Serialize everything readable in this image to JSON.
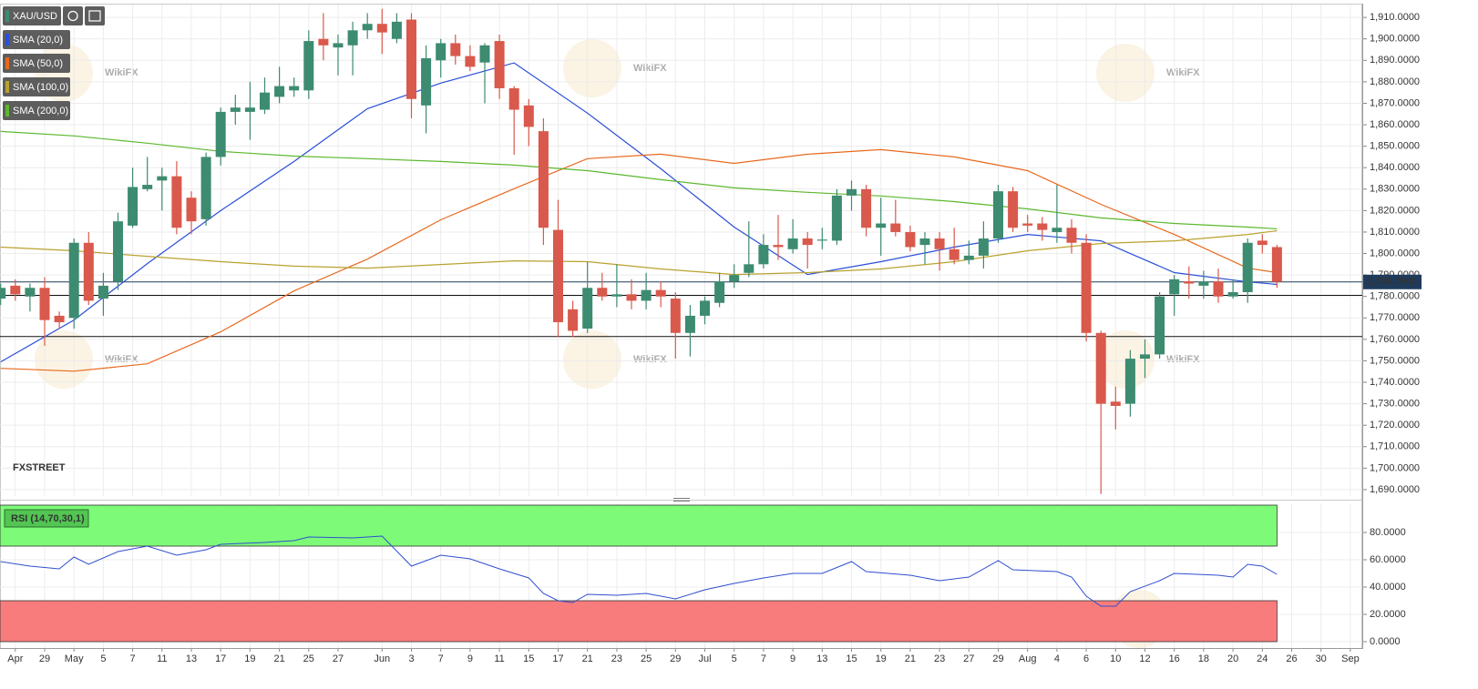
{
  "watermark": "WikiFX",
  "logo": {
    "fx": "FX",
    "street": "STREET"
  },
  "chart_data": [
    {
      "type": "candlestick",
      "symbol": "XAU/USD",
      "up_color": "#3d8b70",
      "down_color": "#d9594c",
      "grid": true,
      "categories": [
        null,
        "Apr",
        null,
        "29",
        null,
        "May",
        null,
        "5",
        null,
        "7",
        null,
        "11",
        null,
        "13",
        null,
        "17",
        null,
        "19",
        null,
        "21",
        null,
        "25",
        null,
        "27",
        null,
        null,
        "Jun",
        null,
        "3",
        null,
        "7",
        null,
        "9",
        null,
        "11",
        null,
        "15",
        null,
        "17",
        null,
        "21",
        null,
        "23",
        null,
        "25",
        null,
        "29",
        null,
        "Jul",
        null,
        "5",
        null,
        "7",
        null,
        "9",
        null,
        "13",
        null,
        "15",
        null,
        "19",
        null,
        "21",
        null,
        "23",
        null,
        "27",
        null,
        "29",
        null,
        "Aug",
        null,
        "4",
        null,
        "6",
        null,
        "10",
        null,
        "12",
        null,
        "16",
        null,
        "18",
        null,
        "20",
        null,
        "24",
        null,
        "26",
        null,
        "30",
        null,
        "Sep"
      ],
      "open": [
        1779,
        1785,
        1780,
        1784,
        1771,
        1770,
        1805,
        1779,
        1787,
        1813,
        1830,
        1834,
        1836,
        1826,
        1816,
        1845,
        1866,
        1866,
        1867,
        1873,
        1876,
        1876,
        1900,
        1896,
        1897,
        1904,
        1907,
        1900,
        1909,
        1869,
        1890,
        1898,
        1892,
        1889,
        1899,
        1877,
        1869,
        1857,
        1811,
        1774,
        1765,
        1784,
        1780,
        1781,
        1778,
        1783,
        1779,
        1763,
        1771,
        1777,
        1787,
        1791,
        1795,
        1804,
        1802,
        1807,
        1806,
        1806,
        1827,
        1830,
        1812,
        1814,
        1810,
        1804,
        1807,
        1802,
        1797,
        1799,
        1807,
        1829,
        1814,
        1814,
        1810,
        1812,
        1805,
        1763,
        1731,
        1730,
        1751,
        1753,
        1781,
        1787,
        1785,
        1787,
        1780,
        1782,
        1806,
        1803,
        null,
        null,
        null,
        null,
        null
      ],
      "high": [
        1786,
        1788,
        1786,
        1789,
        1773,
        1807,
        1810,
        1791,
        1819,
        1840,
        1845,
        1840,
        1843,
        1829,
        1847,
        1868,
        1874,
        1880,
        1882,
        1887,
        1882,
        1904,
        1912,
        1902,
        1908,
        1912,
        1914,
        1912,
        1912,
        1897,
        1900,
        1902,
        1897,
        1898,
        1902,
        1878,
        1872,
        1863,
        1825,
        1778,
        1796,
        1791,
        1795,
        1788,
        1791,
        1787,
        1782,
        1776,
        1780,
        1791,
        1795,
        1815,
        1809,
        1818,
        1816,
        1810,
        1812,
        1830,
        1834,
        1832,
        1826,
        1825,
        1813,
        1810,
        1810,
        1812,
        1806,
        1815,
        1832,
        1831,
        1818,
        1817,
        1832,
        1816,
        1809,
        1764,
        1738,
        1755,
        1760,
        1782,
        1790,
        1794,
        1792,
        1793,
        1788,
        1807,
        1809,
        1804,
        null,
        null,
        null,
        null,
        null
      ],
      "low": [
        1776,
        1778,
        1773,
        1757,
        1765,
        1765,
        1776,
        1771,
        1783,
        1812,
        1829,
        1820,
        1809,
        1809,
        1813,
        1841,
        1860,
        1853,
        1865,
        1870,
        1873,
        1872,
        1890,
        1883,
        1883,
        1900,
        1893,
        1898,
        1863,
        1856,
        1882,
        1888,
        1885,
        1870,
        1872,
        1846,
        1850,
        1804,
        1761,
        1761,
        1763,
        1778,
        1775,
        1774,
        1774,
        1775,
        1751,
        1752,
        1767,
        1775,
        1784,
        1789,
        1793,
        1797,
        1800,
        1793,
        1802,
        1804,
        1820,
        1808,
        1799,
        1808,
        1801,
        1795,
        1792,
        1795,
        1795,
        1793,
        1805,
        1810,
        1810,
        1806,
        1805,
        1800,
        1759,
        1688,
        1718,
        1724,
        1742,
        1751,
        1771,
        1779,
        1779,
        1777,
        1779,
        1777,
        1800,
        1784,
        null,
        null,
        null,
        null,
        null
      ],
      "close": [
        1784,
        1781,
        1784,
        1769,
        1768,
        1805,
        1778,
        1785,
        1815,
        1831,
        1832,
        1836,
        1812,
        1815,
        1845,
        1866,
        1868,
        1868,
        1875,
        1878,
        1878,
        1899,
        1897,
        1898,
        1904,
        1907,
        1903,
        1908,
        1872,
        1891,
        1898,
        1892,
        1887,
        1897,
        1877,
        1867,
        1859,
        1812,
        1768,
        1764,
        1784,
        1780,
        1781,
        1778,
        1783,
        1780,
        1763,
        1771,
        1778,
        1787,
        1790,
        1795,
        1804,
        1803,
        1807,
        1804,
        1806.5,
        1827,
        1830,
        1812,
        1814,
        1810,
        1803,
        1807,
        1802,
        1797,
        1799,
        1807,
        1829,
        1812,
        1813,
        1811,
        1812,
        1805,
        1763,
        1730,
        1729,
        1751,
        1753,
        1780,
        1788,
        1786,
        1787,
        1780,
        1782,
        1805,
        1804,
        1786.75,
        null,
        null,
        null,
        null,
        null
      ],
      "ylim": [
        1687,
        1916
      ],
      "yticks": [
        {
          "value": 1690,
          "label": "1,690.0000"
        },
        {
          "value": 1700,
          "label": "1,700.0000"
        },
        {
          "value": 1710,
          "label": "1,710.0000"
        },
        {
          "value": 1720,
          "label": "1,720.0000"
        },
        {
          "value": 1730,
          "label": "1,730.0000"
        },
        {
          "value": 1740,
          "label": "1,740.0000"
        },
        {
          "value": 1750,
          "label": "1,750.0000"
        },
        {
          "value": 1760,
          "label": "1,760.0000"
        },
        {
          "value": 1770,
          "label": "1,770.0000"
        },
        {
          "value": 1780,
          "label": "1,780.0000"
        },
        {
          "value": 1790,
          "label": "1,790.0000"
        },
        {
          "value": 1800,
          "label": "1,800.0000"
        },
        {
          "value": 1810,
          "label": "1,810.0000"
        },
        {
          "value": 1820,
          "label": "1,820.0000"
        },
        {
          "value": 1830,
          "label": "1,830.0000"
        },
        {
          "value": 1840,
          "label": "1,840.0000"
        },
        {
          "value": 1850,
          "label": "1,850.0000"
        },
        {
          "value": 1860,
          "label": "1,860.0000"
        },
        {
          "value": 1870,
          "label": "1,870.0000"
        },
        {
          "value": 1880,
          "label": "1,880.0000"
        },
        {
          "value": 1890,
          "label": "1,890.0000"
        },
        {
          "value": 1900,
          "label": "1,900.0000"
        },
        {
          "value": 1910,
          "label": "1,910.0000"
        }
      ],
      "overlays": [
        {
          "name": "SMA (20,0)",
          "color": "#2a4fd8",
          "x": [
            0,
            5,
            10,
            15,
            20,
            25,
            30,
            35,
            40,
            45,
            50,
            55,
            60,
            65,
            70,
            75,
            80,
            85,
            87
          ],
          "values": [
            1749.5,
            1769.0,
            1795.3,
            1820.0,
            1842.9,
            1867.5,
            1879.4,
            1888.8,
            1865.4,
            1839.5,
            1812.3,
            1790.2,
            1796.2,
            1803.0,
            1808.9,
            1805.9,
            1791.1,
            1786.8,
            1785.6
          ]
        },
        {
          "name": "SMA (50,0)",
          "color": "#e8691e",
          "x": [
            0,
            5,
            10,
            15,
            20,
            25,
            30,
            35,
            40,
            45,
            50,
            55,
            60,
            65,
            70,
            75,
            80,
            85,
            87
          ],
          "values": [
            1746.5,
            1745.2,
            1748.6,
            1763.5,
            1782.6,
            1797.4,
            1815.7,
            1830.2,
            1844.2,
            1846.3,
            1842.0,
            1846.3,
            1848.4,
            1845.0,
            1838.6,
            1822.9,
            1808.9,
            1793.2,
            1791.1
          ]
        },
        {
          "name": "SMA (100,0)",
          "color": "#b9a22e",
          "x": [
            0,
            5,
            10,
            15,
            20,
            25,
            30,
            35,
            40,
            45,
            50,
            55,
            60,
            65,
            70,
            75,
            80,
            85,
            87
          ],
          "values": [
            1803.0,
            1801.3,
            1798.7,
            1796.2,
            1794.1,
            1793.2,
            1794.9,
            1796.6,
            1796.2,
            1792.8,
            1790.2,
            1791.1,
            1792.8,
            1796.2,
            1801.3,
            1804.7,
            1805.9,
            1808.9,
            1810.6
          ]
        },
        {
          "name": "SMA (200,0)",
          "color": "#5cb82e",
          "x": [
            0,
            5,
            10,
            15,
            20,
            25,
            30,
            35,
            40,
            45,
            50,
            55,
            60,
            65,
            70,
            75,
            80,
            85,
            87
          ],
          "values": [
            1856.9,
            1854.8,
            1851.4,
            1847.6,
            1845.4,
            1844.2,
            1842.9,
            1841.2,
            1838.6,
            1834.4,
            1830.6,
            1828.5,
            1826.8,
            1824.2,
            1820.8,
            1816.6,
            1814.0,
            1812.3,
            1811.5
          ]
        }
      ],
      "hlines": [
        1780.5,
        1761.3
      ],
      "last_price": {
        "value": 1786.75,
        "label": "1,786.7500",
        "color": "#1f3b5c"
      }
    },
    {
      "type": "line",
      "grid": true,
      "series": [
        {
          "name": "RSI (14,70,30,1)",
          "color": "#2f4fd0",
          "x": [
            0,
            2,
            4,
            5,
            6,
            8,
            10,
            12,
            14,
            15,
            18,
            20,
            21,
            24,
            26,
            28,
            30,
            32,
            34,
            36,
            37,
            38,
            39,
            40,
            42,
            44,
            46,
            48,
            50,
            52,
            54,
            56,
            58,
            59,
            62,
            64,
            66,
            68,
            69,
            72,
            73,
            74,
            75,
            76,
            77,
            79,
            80,
            83,
            84,
            85,
            86,
            87
          ],
          "values": [
            58.7,
            55.3,
            53.3,
            62,
            56.7,
            66,
            70,
            63.3,
            67.3,
            71.3,
            72.7,
            74,
            76.7,
            76,
            77.3,
            55.3,
            63.3,
            60.7,
            53.3,
            46.7,
            35.3,
            30,
            28.7,
            34.7,
            34,
            35.3,
            31.3,
            38,
            42.7,
            46.7,
            50,
            50,
            58.7,
            51.3,
            48.7,
            44.7,
            47.3,
            59.3,
            52.7,
            51.3,
            47.3,
            33.3,
            26,
            26,
            36.7,
            44.7,
            50,
            48.7,
            47.3,
            56.7,
            55.3,
            49.3
          ]
        }
      ],
      "zones": [
        {
          "range": [
            70,
            100
          ],
          "color": "#7dfa78"
        },
        {
          "range": [
            0,
            30
          ],
          "color": "#f87c7c"
        }
      ],
      "ylim": [
        -5,
        100
      ],
      "yticks": [
        {
          "value": 0,
          "label": "0.0000"
        },
        {
          "value": 20,
          "label": "20.0000"
        },
        {
          "value": 40,
          "label": "40.0000"
        },
        {
          "value": 60,
          "label": "60.0000"
        },
        {
          "value": 80,
          "label": "80.0000"
        }
      ]
    }
  ]
}
